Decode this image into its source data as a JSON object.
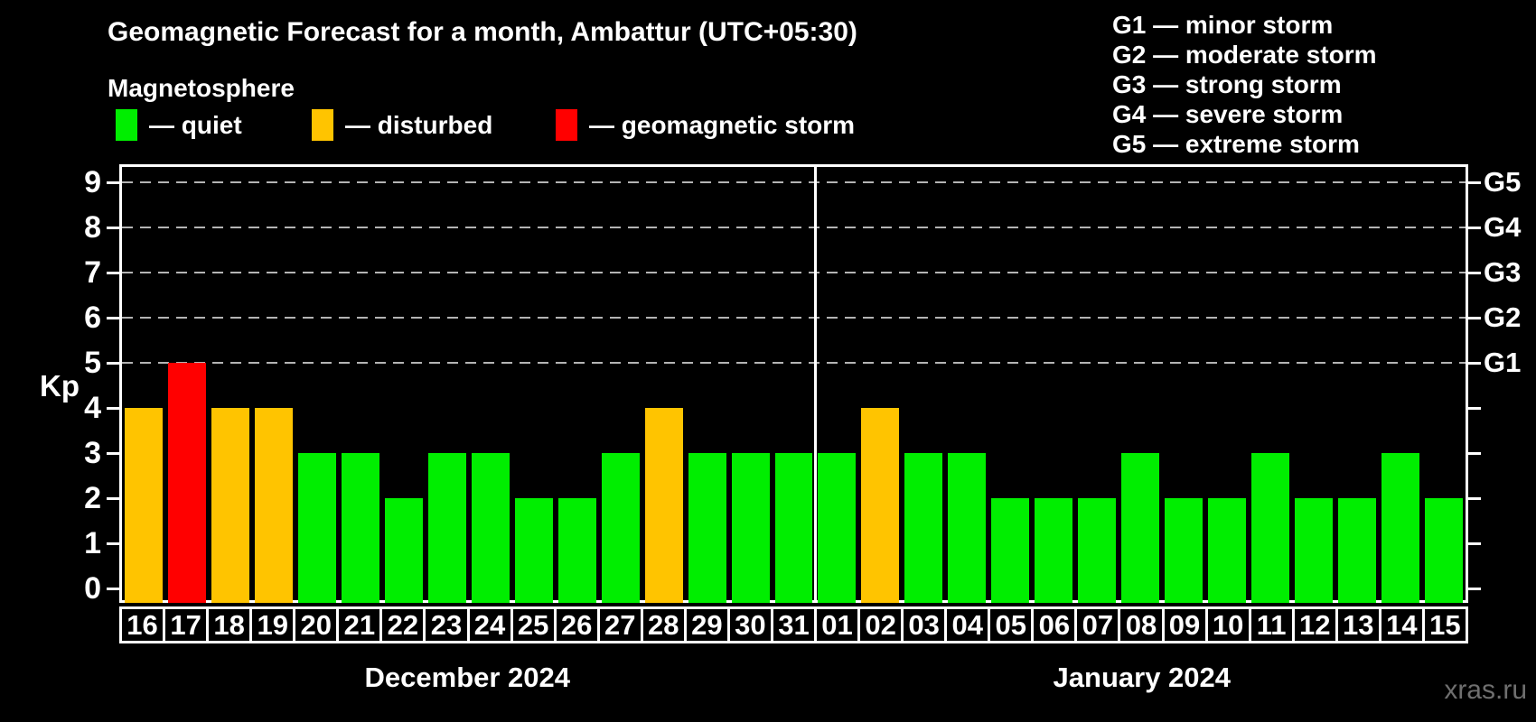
{
  "title": "Geomagnetic Forecast for a month, Ambattur (UTC+05:30)",
  "subtitle": "Magnetosphere",
  "legend": {
    "items": [
      {
        "state": "quiet",
        "label": "— quiet",
        "color": "#00ee00"
      },
      {
        "state": "disturbed",
        "label": "— disturbed",
        "color": "#ffc400"
      },
      {
        "state": "storm",
        "label": "— geomagnetic storm",
        "color": "#ff0000"
      }
    ]
  },
  "storm_scale": [
    {
      "label": "G1 — minor storm"
    },
    {
      "label": "G2 — moderate storm"
    },
    {
      "label": "G3 — strong storm"
    },
    {
      "label": "G4 — severe storm"
    },
    {
      "label": "G5 — extreme storm"
    }
  ],
  "watermark": "xras.ru",
  "chart_data": {
    "type": "bar",
    "title": "Geomagnetic Forecast for a month, Ambattur (UTC+05:30)",
    "ylabel": "Kp",
    "ylim": [
      0,
      9.4
    ],
    "yticks": [
      0,
      1,
      2,
      3,
      4,
      5,
      6,
      7,
      8,
      9
    ],
    "right_ticks": [
      {
        "label": "G1",
        "kp": 5
      },
      {
        "label": "G2",
        "kp": 6
      },
      {
        "label": "G3",
        "kp": 7
      },
      {
        "label": "G4",
        "kp": 8
      },
      {
        "label": "G5",
        "kp": 9
      }
    ],
    "gridlines_at_kp": [
      5,
      6,
      7,
      8,
      9
    ],
    "grid_style": "dashed horizontal",
    "bar_colors": {
      "quiet": "#00ee00",
      "disturbed": "#ffc400",
      "storm": "#ff0000"
    },
    "color_rule": {
      "quiet": "Kp 0-3",
      "disturbed": "Kp 4",
      "storm": "Kp 5-9"
    },
    "months": [
      {
        "label": "December 2024",
        "days": [
          "16",
          "17",
          "18",
          "19",
          "20",
          "21",
          "22",
          "23",
          "24",
          "25",
          "26",
          "27",
          "28",
          "29",
          "30",
          "31"
        ],
        "kp": [
          4,
          5,
          4,
          4,
          3,
          3,
          2,
          3,
          3,
          2,
          2,
          3,
          4,
          3,
          3,
          3
        ]
      },
      {
        "label": "January 2024",
        "days": [
          "01",
          "02",
          "03",
          "04",
          "05",
          "06",
          "07",
          "08",
          "09",
          "10",
          "11",
          "12",
          "13",
          "14",
          "15"
        ],
        "kp": [
          3,
          4,
          3,
          3,
          2,
          2,
          2,
          3,
          2,
          2,
          3,
          2,
          2,
          3,
          2
        ]
      }
    ]
  }
}
